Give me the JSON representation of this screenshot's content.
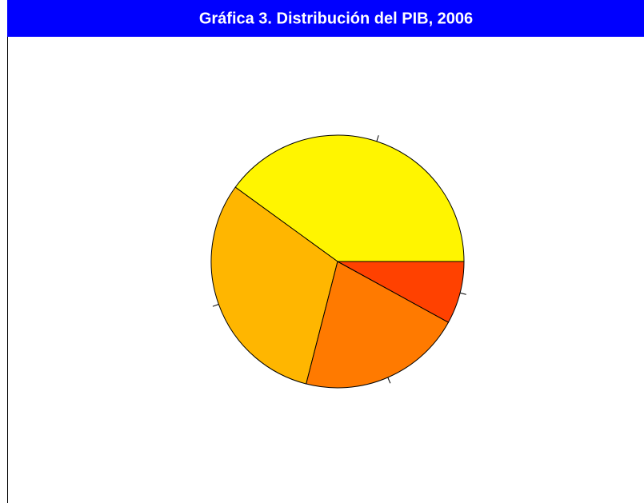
{
  "chart_data": {
    "type": "pie",
    "title": "Gráfica 3.  Distribución del PIB, 2006",
    "values": [
      40,
      31,
      21,
      8
    ],
    "colors": [
      "#fff500",
      "#ffb600",
      "#ff7a00",
      "#ff4100"
    ],
    "start_angle": 0,
    "direction": "counterclockwise"
  }
}
